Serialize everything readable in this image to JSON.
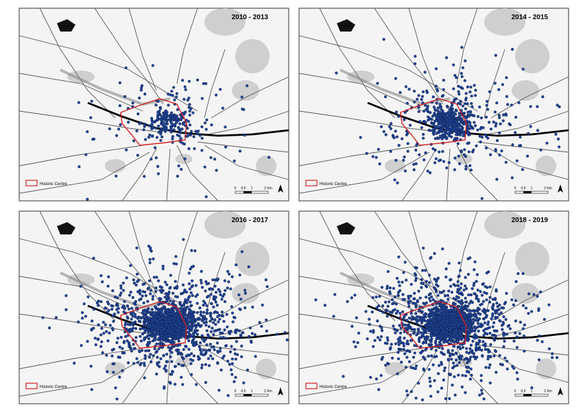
{
  "panels": [
    {
      "title": "2010 - 2013",
      "legend": "Historic Centre",
      "scale": [
        "0",
        "0,5",
        "1",
        "2 Km"
      ]
    },
    {
      "title": "2014 - 2015",
      "legend": "Historic Centre",
      "scale": [
        "0",
        "0,5",
        "1",
        "2 Km"
      ]
    },
    {
      "title": "2016 - 2017",
      "legend": "Historic Centre",
      "scale": [
        "0",
        "0,5",
        "1",
        "2 Km"
      ]
    },
    {
      "title": "2018 - 2019",
      "legend": "Historic Centre",
      "scale": [
        "0",
        "0,5",
        "1",
        "2 Km"
      ]
    }
  ]
}
